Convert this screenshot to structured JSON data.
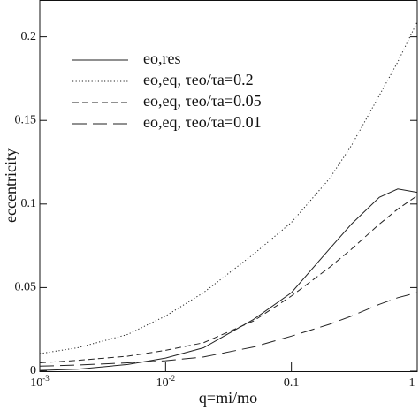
{
  "chart_data": {
    "type": "line",
    "xlabel": "q=mi/mo",
    "ylabel": "eccentricity",
    "xscale": "log",
    "xlim": [
      0.001,
      1
    ],
    "ylim": [
      0,
      0.222
    ],
    "xticks": [
      {
        "value": 0.001,
        "label": "10",
        "exponent": "-3"
      },
      {
        "value": 0.01,
        "label": "10",
        "exponent": "-2"
      },
      0.1,
      1
    ],
    "yticks": [
      0,
      0.05,
      0.1,
      0.15,
      0.2
    ],
    "x": [
      0.001,
      0.002,
      0.005,
      0.01,
      0.02,
      0.05,
      0.1,
      0.2,
      0.3,
      0.5,
      0.7,
      1
    ],
    "legend": "upper left",
    "series": [
      {
        "name": "eo,res",
        "color": "#222",
        "linestyle": "solid",
        "values": [
          0.0005,
          0.0012,
          0.004,
          0.0079,
          0.014,
          0.031,
          0.047,
          0.073,
          0.088,
          0.104,
          0.109,
          0.107
        ]
      },
      {
        "name": "eo,eq, τeo/τa=0.2",
        "color": "#222",
        "linestyle": "dotted",
        "values": [
          0.0105,
          0.014,
          0.022,
          0.033,
          0.047,
          0.07,
          0.089,
          0.115,
          0.135,
          0.165,
          0.185,
          0.209
        ]
      },
      {
        "name": "eo,eq, τeo/τa=0.05",
        "color": "#222",
        "linestyle": "dashed",
        "values": [
          0.005,
          0.0065,
          0.009,
          0.0125,
          0.017,
          0.03,
          0.045,
          0.062,
          0.073,
          0.088,
          0.097,
          0.105
        ]
      },
      {
        "name": "eo,eq, τeo/τa=0.01",
        "color": "#222",
        "linestyle": "longdash",
        "values": [
          0.003,
          0.0037,
          0.005,
          0.0063,
          0.0085,
          0.0145,
          0.021,
          0.028,
          0.033,
          0.04,
          0.044,
          0.047
        ]
      }
    ]
  }
}
